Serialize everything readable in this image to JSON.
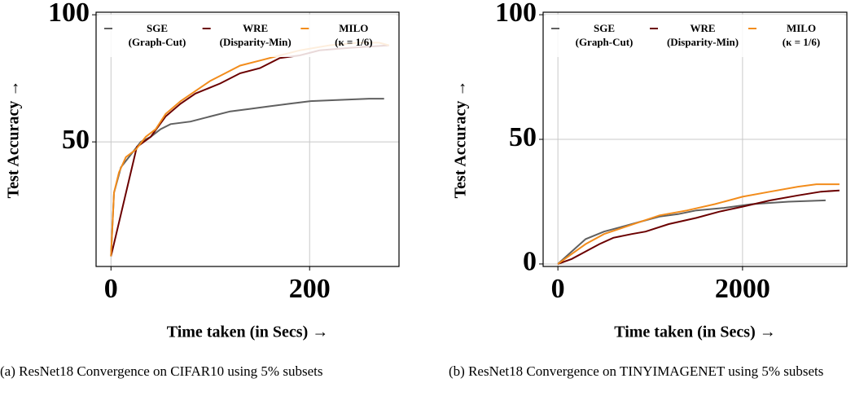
{
  "chart_data": [
    {
      "type": "line",
      "x_label": "Time taken (in Secs) →",
      "y_label": "Test Accuracy →",
      "caption": "(a) ResNet18 Convergence on CIFAR10 using 5% subsets",
      "xlim": [
        -15,
        290
      ],
      "ylim": [
        1,
        101
      ],
      "xticks": [
        0,
        200
      ],
      "yticks": [
        50,
        100
      ],
      "grid": true,
      "series": [
        {
          "name": "SGE",
          "note": "(Graph-Cut)",
          "color": "#606060",
          "x": [
            0,
            3,
            10,
            20,
            30,
            40,
            50,
            60,
            80,
            100,
            120,
            140,
            160,
            180,
            200,
            230,
            260,
            275
          ],
          "values": [
            5,
            30,
            40,
            45,
            50,
            52,
            55,
            57,
            58,
            60,
            62,
            63,
            64,
            65,
            66,
            66.5,
            67,
            67
          ]
        },
        {
          "name": "WRE",
          "note": "(Disparity-Min)",
          "color": "#6b0000",
          "x": [
            0,
            26,
            40,
            55,
            70,
            85,
            110,
            130,
            150,
            170,
            190,
            210,
            240,
            280
          ],
          "values": [
            5,
            48,
            52,
            60,
            65,
            69,
            73,
            77,
            79,
            83,
            84,
            86,
            87,
            88
          ]
        },
        {
          "name": "MILO",
          "note": "(κ = 1/6)",
          "color": "#f28c1c",
          "x": [
            0,
            3,
            8,
            15,
            25,
            35,
            45,
            55,
            70,
            85,
            100,
            115,
            130,
            150,
            170,
            190,
            220,
            250,
            270,
            280
          ],
          "values": [
            5,
            30,
            38,
            44,
            47,
            52,
            55,
            61,
            66,
            70,
            74,
            77,
            80,
            82,
            84,
            86,
            88,
            89,
            89,
            88
          ]
        }
      ]
    },
    {
      "type": "line",
      "x_label": "Time taken (in Secs) →",
      "y_label": "Test Accuracy →",
      "caption": "(b) ResNet18 Convergence on TINYIMAGENET using 5% subsets",
      "xlim": [
        -160,
        3130
      ],
      "ylim": [
        -1,
        101
      ],
      "xticks": [
        0,
        2000
      ],
      "yticks": [
        0,
        50,
        100
      ],
      "grid": true,
      "series": [
        {
          "name": "SGE",
          "note": "(Graph-Cut)",
          "color": "#606060",
          "x": [
            0,
            150,
            300,
            500,
            700,
            900,
            1100,
            1300,
            1500,
            1800,
            2100,
            2500,
            2900
          ],
          "values": [
            0,
            5,
            10,
            13,
            15,
            17,
            19,
            20,
            21.5,
            22.5,
            24,
            25,
            25.5
          ]
        },
        {
          "name": "WRE",
          "note": "(Disparity-Min)",
          "color": "#6b0000",
          "x": [
            0,
            150,
            300,
            450,
            600,
            800,
            950,
            1200,
            1500,
            1750,
            2000,
            2300,
            2600,
            2850,
            3050
          ],
          "values": [
            0,
            2,
            5,
            8,
            10.5,
            12,
            13,
            16,
            18.5,
            21,
            23,
            25.5,
            27.5,
            29,
            29.5
          ]
        },
        {
          "name": "MILO",
          "note": "(κ = 1/6)",
          "color": "#f28c1c",
          "x": [
            0,
            150,
            300,
            500,
            700,
            900,
            1100,
            1400,
            1700,
            2000,
            2300,
            2600,
            2800,
            3050
          ],
          "values": [
            0,
            4,
            8,
            12,
            14.5,
            17,
            19.5,
            21.5,
            24,
            27,
            29,
            31,
            32,
            32
          ]
        }
      ]
    }
  ]
}
